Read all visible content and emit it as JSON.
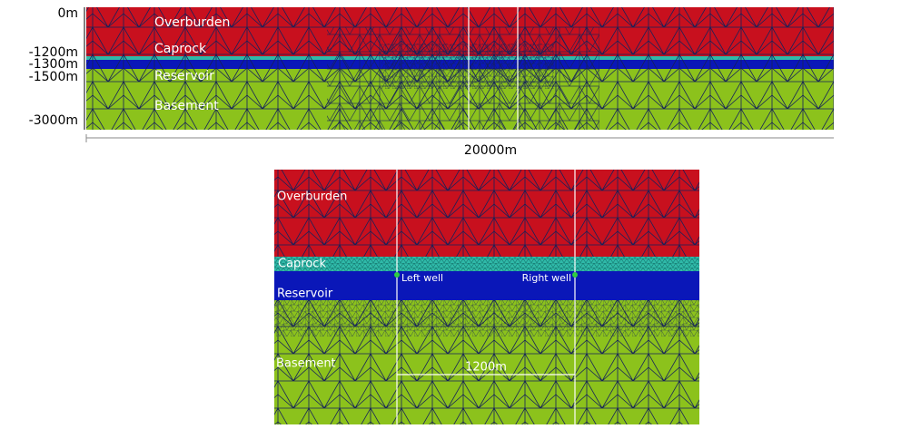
{
  "top_panel": {
    "depth_labels": [
      "0m",
      "-1200m",
      "-1300m",
      "-1500m",
      "-3000m"
    ],
    "layers": [
      "Overburden",
      "Caprock",
      "Reservoir",
      "Basement"
    ],
    "width_label": "20000m"
  },
  "bottom_panel": {
    "layers": [
      "Overburden",
      "Caprock",
      "Reservoir",
      "Basement"
    ],
    "wells": [
      "Left well",
      "Right well"
    ],
    "spacing_label": "1200m"
  }
}
